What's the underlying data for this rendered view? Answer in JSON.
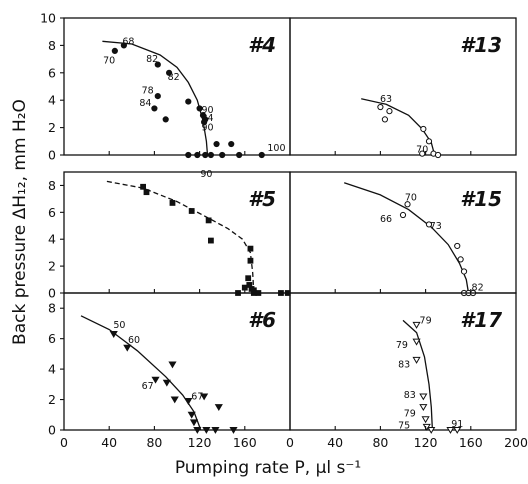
{
  "chart_data": {
    "type": "scatter",
    "xlabel": "Pumping rate P, µl s⁻¹",
    "ylabel": "Back pressure ΔH₁₂, mm H₂O",
    "grid": "2 columns x 3 rows of panels with shared axes",
    "x_ticks_left": [
      "0",
      "40",
      "80",
      "120",
      "160"
    ],
    "x_ticks_right": [
      "0",
      "40",
      "80",
      "120",
      "160",
      "200"
    ],
    "y_ticks": [
      "0",
      "2",
      "4",
      "6",
      "8"
    ],
    "y_ticks_top": [
      "0",
      "2",
      "4",
      "6",
      "8",
      "10"
    ],
    "xlim_left": [
      0,
      200
    ],
    "xlim_right": [
      0,
      200
    ],
    "ylim": [
      0,
      10
    ],
    "panels": [
      {
        "title": "#4",
        "marker": "filled-circle",
        "points": [
          [
            45,
            7.6
          ],
          [
            53,
            8.0
          ],
          [
            83,
            6.6
          ],
          [
            93,
            6.0
          ],
          [
            83,
            4.3
          ],
          [
            80,
            3.4
          ],
          [
            90,
            2.6
          ],
          [
            110,
            3.9
          ],
          [
            120,
            3.4
          ],
          [
            123,
            2.9
          ],
          [
            125,
            2.6
          ],
          [
            124,
            2.4
          ],
          [
            110,
            0
          ],
          [
            118,
            0
          ],
          [
            125,
            0
          ],
          [
            130,
            0
          ],
          [
            140,
            0
          ],
          [
            155,
            0
          ],
          [
            175,
            0
          ],
          [
            135,
            0.8
          ],
          [
            148,
            0.8
          ]
        ],
        "curve": [
          [
            34,
            8.3
          ],
          [
            60,
            8.1
          ],
          [
            85,
            7.3
          ],
          [
            100,
            6.4
          ],
          [
            110,
            5.3
          ],
          [
            118,
            4.0
          ],
          [
            123,
            2.5
          ],
          [
            126,
            1.0
          ],
          [
            127,
            0
          ]
        ],
        "labels": [
          {
            "text": "68",
            "x": 57,
            "y": 8.3
          },
          {
            "text": "70",
            "x": 40,
            "y": 6.9
          },
          {
            "text": "82",
            "x": 78,
            "y": 7.0
          },
          {
            "text": "82",
            "x": 97,
            "y": 5.7
          },
          {
            "text": "78",
            "x": 74,
            "y": 4.7
          },
          {
            "text": "84",
            "x": 72,
            "y": 3.8
          },
          {
            "text": "90",
            "x": 127,
            "y": 3.3
          },
          {
            "text": "84",
            "x": 127,
            "y": 2.7
          },
          {
            "text": "90",
            "x": 127,
            "y": 2.0
          },
          {
            "text": "90",
            "x": 126,
            "y": -1.4
          },
          {
            "text": "100",
            "x": 188,
            "y": 0.5
          }
        ]
      },
      {
        "title": "#13",
        "marker": "open-circle",
        "points": [
          [
            80,
            3.5
          ],
          [
            88,
            3.2
          ],
          [
            84,
            2.6
          ],
          [
            118,
            1.9
          ],
          [
            123,
            1.0
          ],
          [
            117,
            0.1
          ],
          [
            127,
            0.1
          ],
          [
            131,
            0
          ]
        ],
        "curve": [
          [
            63,
            4.1
          ],
          [
            85,
            3.7
          ],
          [
            105,
            2.9
          ],
          [
            117,
            1.9
          ],
          [
            125,
            0.9
          ],
          [
            128,
            0
          ]
        ],
        "labels": [
          {
            "text": "63",
            "x": 85,
            "y": 4.1
          },
          {
            "text": "70",
            "x": 117,
            "y": 0.4
          }
        ]
      },
      {
        "title": "#5",
        "marker": "filled-square",
        "points": [
          [
            70,
            7.9
          ],
          [
            73,
            7.5
          ],
          [
            96,
            6.7
          ],
          [
            113,
            6.1
          ],
          [
            128,
            5.4
          ],
          [
            130,
            3.9
          ],
          [
            165,
            3.3
          ],
          [
            165,
            2.4
          ],
          [
            163,
            1.1
          ],
          [
            164,
            0.6
          ],
          [
            166,
            0.3
          ],
          [
            168,
            0.2
          ],
          [
            154,
            0
          ],
          [
            168,
            0
          ],
          [
            172,
            0
          ],
          [
            192,
            0
          ],
          [
            198,
            0
          ],
          [
            160,
            0.4
          ]
        ],
        "curve": [
          [
            38,
            8.3
          ],
          [
            70,
            7.8
          ],
          [
            100,
            6.8
          ],
          [
            125,
            5.7
          ],
          [
            145,
            4.8
          ],
          [
            158,
            4.0
          ],
          [
            165,
            3.0
          ],
          [
            167,
            1.5
          ],
          [
            168,
            0
          ],
          [
            171,
            0
          ]
        ],
        "dashed_curve": true,
        "labels": []
      },
      {
        "title": "#15",
        "marker": "open-circle",
        "points": [
          [
            100,
            5.8
          ],
          [
            104,
            6.6
          ],
          [
            123,
            5.1
          ],
          [
            148,
            3.5
          ],
          [
            151,
            2.5
          ],
          [
            154,
            1.6
          ],
          [
            154,
            0
          ],
          [
            158,
            0
          ],
          [
            162,
            0
          ]
        ],
        "curve": [
          [
            48,
            8.2
          ],
          [
            80,
            7.3
          ],
          [
            105,
            6.2
          ],
          [
            125,
            4.9
          ],
          [
            140,
            3.6
          ],
          [
            150,
            2.2
          ],
          [
            156,
            1.0
          ],
          [
            158,
            0
          ]
        ],
        "labels": [
          {
            "text": "70",
            "x": 107,
            "y": 7.1
          },
          {
            "text": "66",
            "x": 85,
            "y": 5.5
          },
          {
            "text": "73",
            "x": 129,
            "y": 5.0
          },
          {
            "text": "82",
            "x": 166,
            "y": 0.4
          }
        ]
      },
      {
        "title": "#6",
        "marker": "filled-triangle-down",
        "points": [
          [
            44,
            6.3
          ],
          [
            56,
            5.4
          ],
          [
            81,
            3.3
          ],
          [
            91,
            3.1
          ],
          [
            110,
            1.9
          ],
          [
            113,
            1.0
          ],
          [
            115,
            0.5
          ],
          [
            118,
            0
          ],
          [
            126,
            0
          ],
          [
            134,
            0
          ],
          [
            150,
            0
          ],
          [
            98,
            2.0
          ],
          [
            137,
            1.5
          ],
          [
            124,
            2.2
          ],
          [
            96,
            4.3
          ]
        ],
        "curve": [
          [
            15,
            7.5
          ],
          [
            40,
            6.6
          ],
          [
            65,
            5.2
          ],
          [
            90,
            3.5
          ],
          [
            105,
            2.3
          ],
          [
            115,
            1.2
          ],
          [
            119,
            0.4
          ],
          [
            121,
            0
          ]
        ],
        "labels": [
          {
            "text": "50",
            "x": 49,
            "y": 6.9
          },
          {
            "text": "60",
            "x": 62,
            "y": 5.9
          },
          {
            "text": "67",
            "x": 74,
            "y": 2.9
          },
          {
            "text": "67",
            "x": 118,
            "y": 2.2
          }
        ]
      },
      {
        "title": "#17",
        "marker": "open-triangle-down",
        "points": [
          [
            112,
            6.9
          ],
          [
            112,
            5.8
          ],
          [
            112,
            4.6
          ],
          [
            118,
            2.2
          ],
          [
            118,
            1.5
          ],
          [
            120,
            0.7
          ],
          [
            121,
            0.2
          ],
          [
            125,
            0
          ],
          [
            142,
            0
          ],
          [
            148,
            0
          ]
        ],
        "curve": [
          [
            100,
            7.2
          ],
          [
            112,
            6.4
          ],
          [
            119,
            4.8
          ],
          [
            123,
            3.0
          ],
          [
            125,
            1.5
          ],
          [
            126,
            0
          ]
        ],
        "labels": [
          {
            "text": "79",
            "x": 120,
            "y": 7.2
          },
          {
            "text": "79",
            "x": 99,
            "y": 5.6
          },
          {
            "text": "83",
            "x": 101,
            "y": 4.3
          },
          {
            "text": "83",
            "x": 106,
            "y": 2.3
          },
          {
            "text": "79",
            "x": 106,
            "y": 1.1
          },
          {
            "text": "75",
            "x": 101,
            "y": 0.3
          },
          {
            "text": "91",
            "x": 148,
            "y": 0.4
          }
        ]
      }
    ]
  }
}
